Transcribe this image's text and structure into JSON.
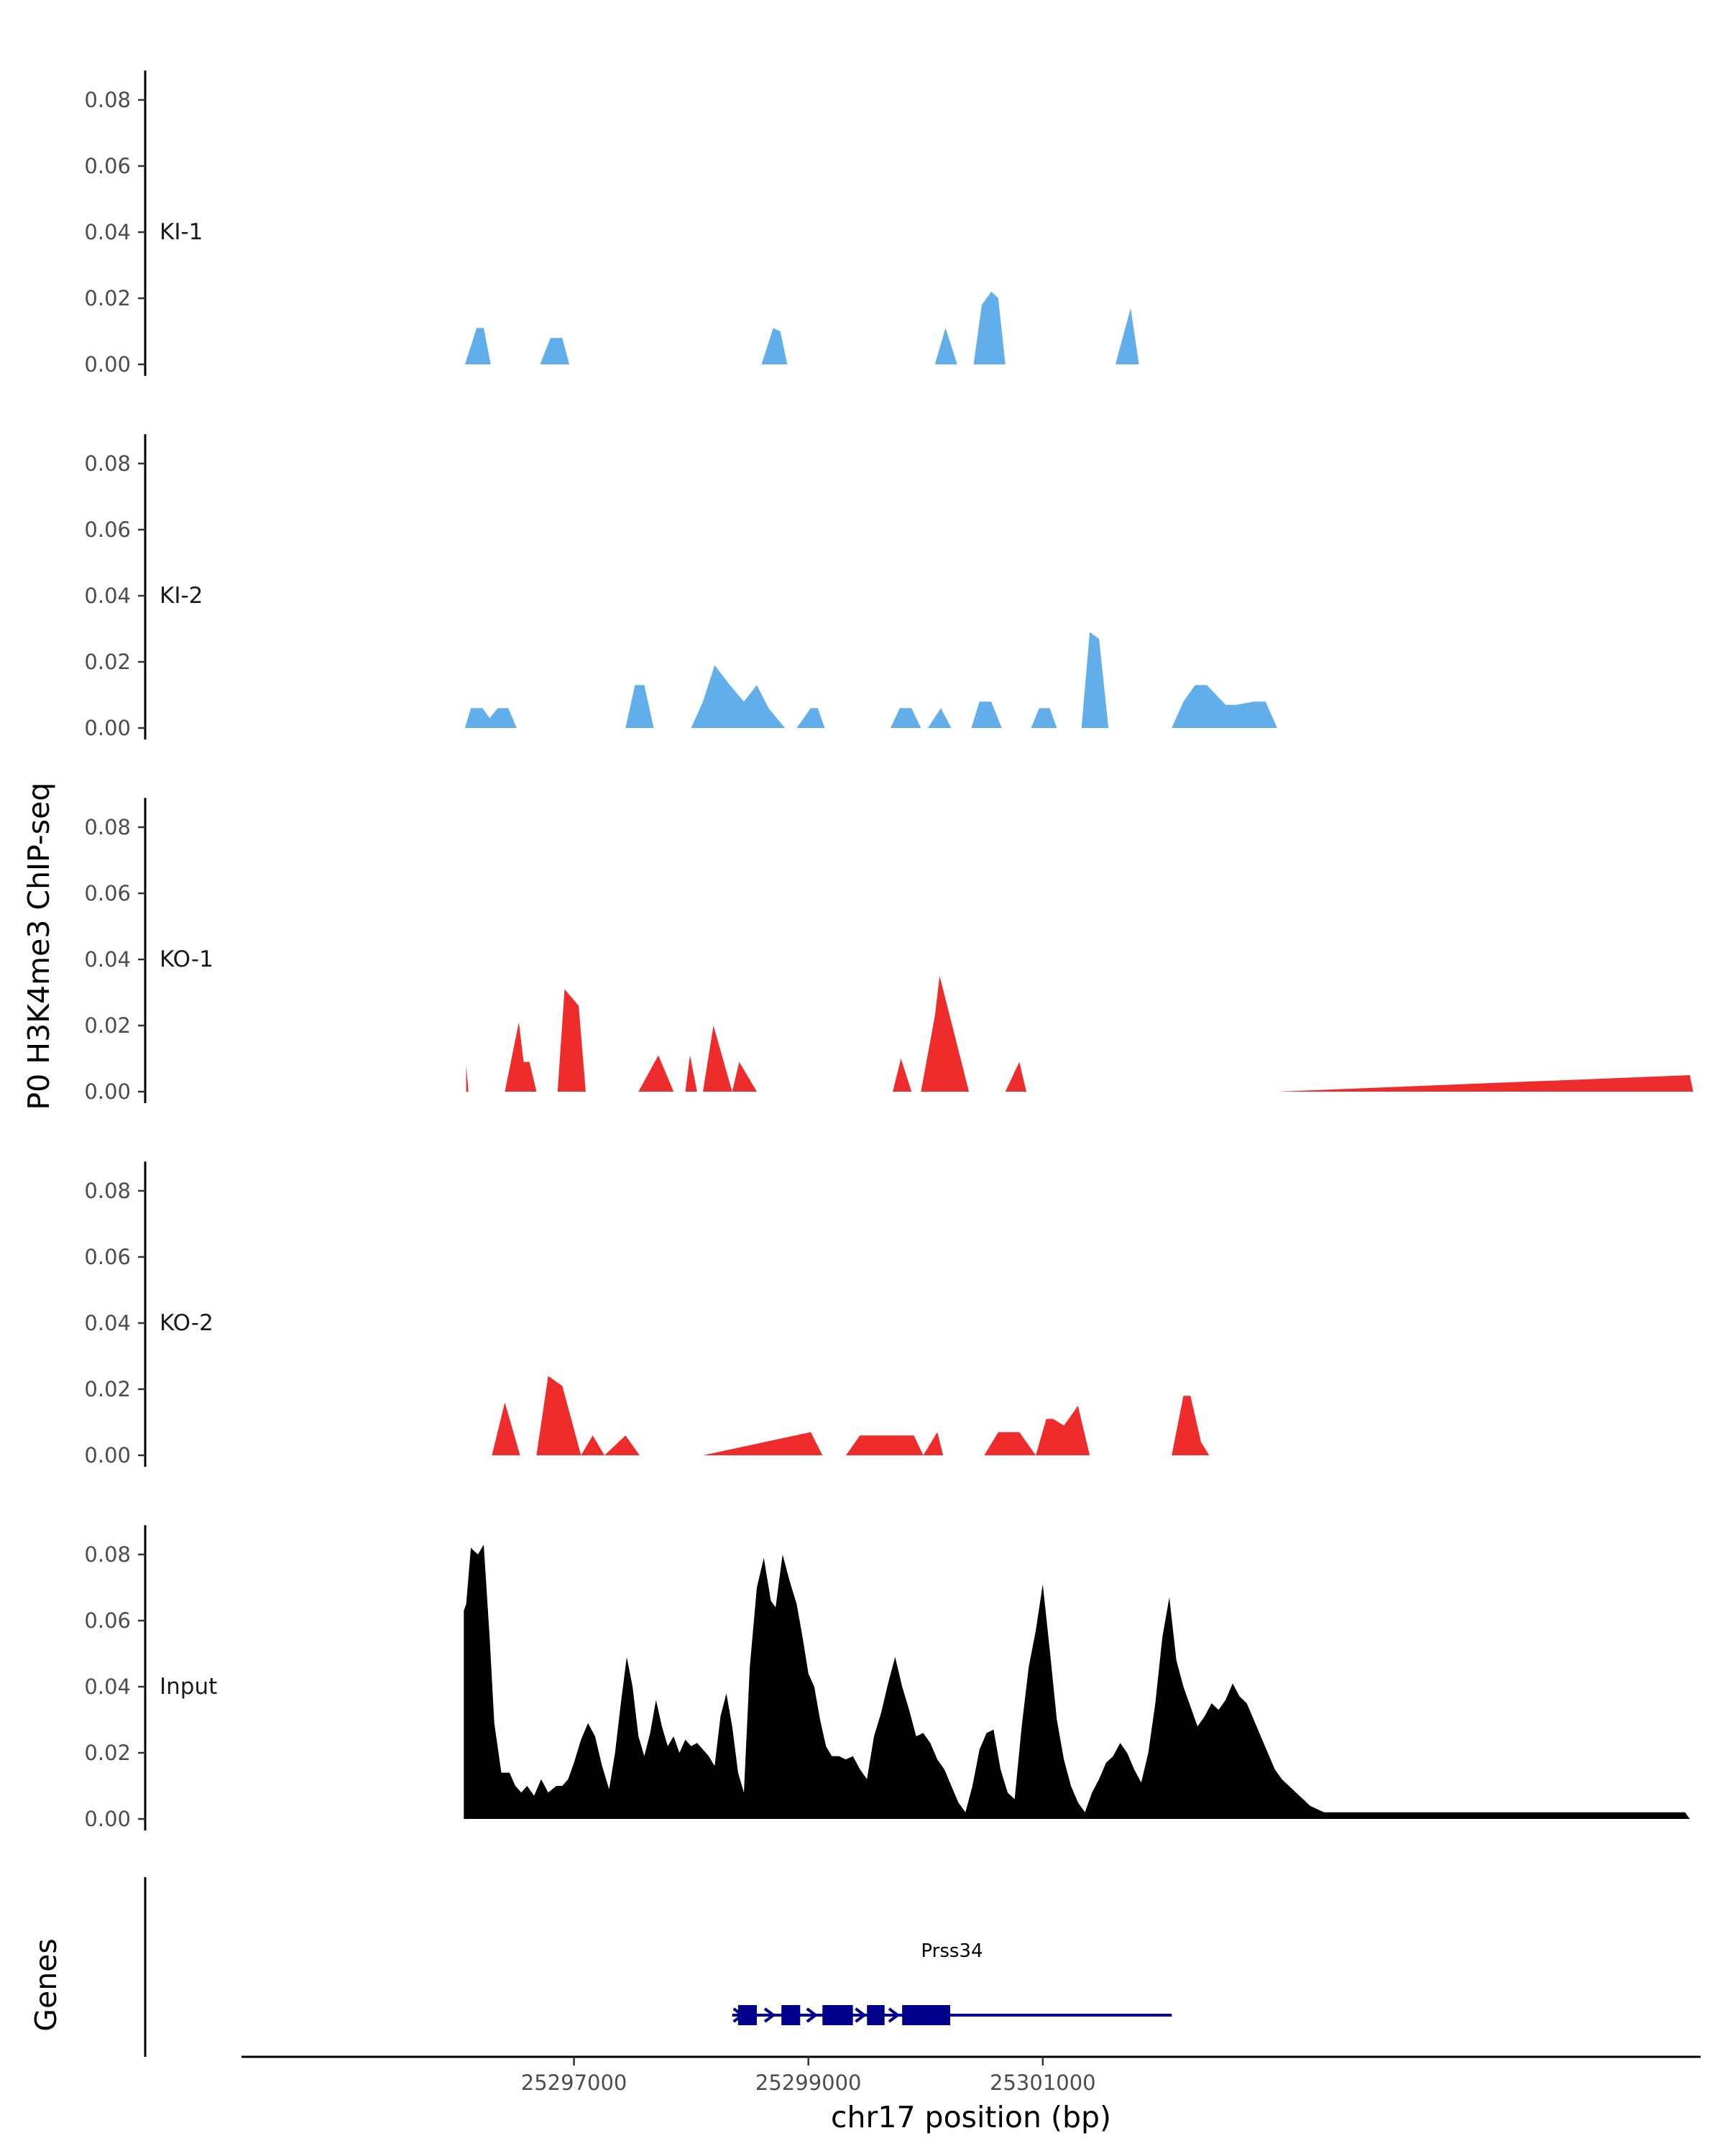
{
  "chart_data": {
    "type": "area",
    "ylabel": "P0 H3K4me3 ChIP-seq",
    "xlabel": "chr17 position (bp)",
    "genes_label": "Genes",
    "xlim": [
      25294200,
      25306600
    ],
    "ylim": [
      0,
      0.088
    ],
    "y_ticks": [
      "0.00",
      "0.02",
      "0.04",
      "0.06",
      "0.08"
    ],
    "x_ticks": [
      {
        "value": 25297000,
        "label": "25297000"
      },
      {
        "value": 25299000,
        "label": "25299000"
      },
      {
        "value": 25301000,
        "label": "25301000"
      }
    ],
    "colors": {
      "KI": "#62aeea",
      "KO": "#ee2c2c",
      "Input": "#000000",
      "gene": "#00008b",
      "axis": "#000000"
    },
    "tracks": [
      {
        "name": "KI-1",
        "color": "#62aeea",
        "x": [
          25296070,
          25296170,
          25296230,
          25296290,
          25296370,
          25296710,
          25296800,
          25296900,
          25296960,
          25298600,
          25298700,
          25298760,
          25298820,
          25298900,
          25300080,
          25300170,
          25300270,
          25300340,
          25300410,
          25300480,
          25300560,
          25300620,
          25300680,
          25300760,
          25300800,
          25301620,
          25301750,
          25301820,
          25301900,
          25301980,
          25302000
        ],
        "y": [
          0.0,
          0.011,
          0.011,
          0.0,
          0.0,
          0.0,
          0.008,
          0.008,
          0.0,
          0.0,
          0.011,
          0.01,
          0.0,
          0.0,
          0.0,
          0.011,
          0.0,
          0.0,
          0.0,
          0.018,
          0.022,
          0.02,
          0.0,
          0.0,
          0.0,
          0.0,
          0.017,
          0.0,
          0.0,
          0.0,
          0.0
        ]
      },
      {
        "name": "KI-2",
        "color": "#62aeea",
        "x": [
          25296070,
          25296120,
          25296220,
          25296280,
          25296350,
          25296440,
          25296510,
          25296580,
          25296700,
          25296800,
          25297440,
          25297520,
          25297600,
          25297680,
          25298000,
          25298100,
          25298200,
          25298330,
          25298450,
          25298560,
          25298660,
          25298800,
          25298900,
          25299020,
          25299080,
          25299140,
          25299200,
          25299320,
          25299700,
          25299780,
          25299880,
          25299960,
          25300020,
          25300130,
          25300220,
          25300300,
          25300390,
          25300460,
          25300560,
          25300650,
          25300900,
          25300970,
          25301060,
          25301120,
          25301330,
          25301400,
          25301480,
          25301560,
          25301600,
          25301650,
          25301730,
          25301870,
          25302000,
          25302100,
          25302200,
          25302300,
          25302400,
          25302560,
          25302650,
          25302800,
          25302900,
          25303000,
          25303100,
          25303200
        ],
        "y": [
          0.0,
          0.006,
          0.006,
          0.003,
          0.006,
          0.006,
          0.0,
          0.0,
          0.0,
          0.0,
          0.0,
          0.013,
          0.013,
          0.0,
          0.0,
          0.008,
          0.019,
          0.013,
          0.008,
          0.013,
          0.006,
          0.0,
          0.0,
          0.006,
          0.006,
          0.0,
          0.0,
          0.0,
          0.0,
          0.006,
          0.006,
          0.0,
          0.0,
          0.006,
          0.0,
          0.0,
          0.0,
          0.008,
          0.008,
          0.0,
          0.0,
          0.006,
          0.006,
          0.0,
          0.0,
          0.029,
          0.027,
          0.0,
          0.0,
          0.0,
          0.0,
          0.0,
          0.0,
          0.0,
          0.008,
          0.013,
          0.013,
          0.007,
          0.007,
          0.008,
          0.008,
          0.0,
          0.0,
          0.0
        ]
      },
      {
        "name": "KO-1",
        "color": "#ee2c2c",
        "x": [
          25296080,
          25296100,
          25296180,
          25296280,
          25296410,
          25296530,
          25296570,
          25296620,
          25296680,
          25296790,
          25296860,
          25296920,
          25297040,
          25297100,
          25297260,
          25297420,
          25297550,
          25297720,
          25297850,
          25297950,
          25297990,
          25298050,
          25298100,
          25298190,
          25298350,
          25298410,
          25298560,
          25298620,
          25298750,
          25298900,
          25299120,
          25299280,
          25299420,
          25299540,
          25299720,
          25299790,
          25299880,
          25299960,
          25300080,
          25300120,
          25300170,
          25300370,
          25300420,
          25300510,
          25300590,
          25300680,
          25300800,
          25300860,
          25300950,
          25301060,
          25302000,
          25303000,
          25306520,
          25306550
        ],
        "y": [
          0.008,
          0.0,
          0.0,
          0.0,
          0.0,
          0.021,
          0.009,
          0.009,
          0.0,
          0.0,
          0.0,
          0.031,
          0.026,
          0.0,
          0.0,
          0.0,
          0.0,
          0.011,
          0.0,
          0.0,
          0.011,
          0.0,
          0.0,
          0.02,
          0.0,
          0.009,
          0.0,
          0.0,
          0.0,
          0.0,
          0.0,
          0.0,
          0.0,
          0.0,
          0.0,
          0.01,
          0.0,
          0.0,
          0.023,
          0.035,
          0.028,
          0.0,
          0.0,
          0.0,
          0.0,
          0.0,
          0.009,
          0.0,
          0.0,
          0.0,
          0.0,
          0.0,
          0.005,
          0.0
        ]
      },
      {
        "name": "KO-2",
        "color": "#ee2c2c",
        "x": [
          25296080,
          25296120,
          25296300,
          25296410,
          25296540,
          25296680,
          25296780,
          25296900,
          25297060,
          25297160,
          25297260,
          25297440,
          25297560,
          25297680,
          25298100,
          25299020,
          25299120,
          25299320,
          25299440,
          25299740,
          25299900,
          25299980,
          25300100,
          25300150,
          25300200,
          25300340,
          25300500,
          25300620,
          25300800,
          25300940,
          25301030,
          25301090,
          25301180,
          25301300,
          25301400,
          25301550,
          25302100,
          25302200,
          25302260,
          25302350,
          25302420
        ],
        "y": [
          0.0,
          0.0,
          0.0,
          0.016,
          0.0,
          0.0,
          0.024,
          0.021,
          0.0,
          0.006,
          0.0,
          0.006,
          0.0,
          0.0,
          0.0,
          0.007,
          0.0,
          0.0,
          0.006,
          0.006,
          0.006,
          0.0,
          0.007,
          0.0,
          0.0,
          0.0,
          0.0,
          0.007,
          0.007,
          0.0,
          0.011,
          0.011,
          0.009,
          0.015,
          0.0,
          0.0,
          0.0,
          0.018,
          0.018,
          0.004,
          0.0
        ]
      },
      {
        "name": "Input",
        "color": "#000000",
        "x": [
          25296060,
          25296080,
          25296120,
          25296180,
          25296230,
          25296280,
          25296320,
          25296380,
          25296450,
          25296500,
          25296550,
          25296600,
          25296660,
          25296720,
          25296780,
          25296850,
          25296900,
          25296950,
          25297000,
          25297060,
          25297120,
          25297180,
          25297240,
          25297300,
          25297350,
          25297400,
          25297450,
          25297500,
          25297550,
          25297600,
          25297650,
          25297700,
          25297750,
          25297800,
          25297850,
          25297900,
          25297950,
          25298000,
          25298050,
          25298100,
          25298150,
          25298200,
          25298250,
          25298300,
          25298350,
          25298400,
          25298450,
          25298500,
          25298560,
          25298620,
          25298680,
          25298720,
          25298780,
          25298840,
          25298900,
          25298950,
          25299000,
          25299050,
          25299100,
          25299150,
          25299200,
          25299260,
          25299320,
          25299380,
          25299440,
          25299500,
          25299560,
          25299620,
          25299680,
          25299740,
          25299800,
          25299860,
          25299920,
          25299980,
          25300040,
          25300100,
          25300160,
          25300220,
          25300280,
          25300340,
          25300400,
          25300460,
          25300520,
          25300580,
          25300640,
          25300700,
          25300760,
          25300820,
          25300880,
          25300940,
          25301000,
          25301060,
          25301120,
          25301180,
          25301240,
          25301300,
          25301360,
          25301420,
          25301480,
          25301540,
          25301600,
          25301660,
          25301720,
          25301780,
          25301840,
          25301900,
          25301960,
          25302020,
          25302080,
          25302140,
          25302200,
          25302260,
          25302320,
          25302380,
          25302440,
          25302500,
          25302560,
          25302620,
          25302680,
          25302740,
          25302800,
          25302860,
          25302920,
          25302980,
          25303040,
          25303100,
          25303160,
          25303220,
          25303280,
          25303340,
          25303400,
          25303460,
          25303520,
          25303580,
          25303640,
          25303700,
          25303760,
          25303820,
          25303880,
          25303940,
          25303990,
          25306480,
          25306520
        ],
        "y": [
          0.063,
          0.065,
          0.082,
          0.08,
          0.083,
          0.055,
          0.029,
          0.014,
          0.014,
          0.01,
          0.008,
          0.01,
          0.007,
          0.012,
          0.008,
          0.01,
          0.01,
          0.012,
          0.017,
          0.024,
          0.029,
          0.025,
          0.016,
          0.009,
          0.02,
          0.035,
          0.049,
          0.04,
          0.025,
          0.019,
          0.026,
          0.036,
          0.028,
          0.022,
          0.025,
          0.02,
          0.024,
          0.022,
          0.023,
          0.021,
          0.019,
          0.016,
          0.031,
          0.038,
          0.028,
          0.014,
          0.008,
          0.046,
          0.07,
          0.079,
          0.066,
          0.064,
          0.08,
          0.072,
          0.065,
          0.055,
          0.044,
          0.04,
          0.03,
          0.022,
          0.019,
          0.019,
          0.018,
          0.019,
          0.015,
          0.012,
          0.025,
          0.032,
          0.041,
          0.049,
          0.04,
          0.033,
          0.025,
          0.026,
          0.023,
          0.018,
          0.015,
          0.01,
          0.005,
          0.002,
          0.01,
          0.021,
          0.026,
          0.027,
          0.015,
          0.008,
          0.006,
          0.028,
          0.046,
          0.057,
          0.071,
          0.051,
          0.03,
          0.018,
          0.01,
          0.005,
          0.002,
          0.008,
          0.012,
          0.017,
          0.019,
          0.023,
          0.02,
          0.015,
          0.011,
          0.02,
          0.035,
          0.055,
          0.067,
          0.048,
          0.04,
          0.034,
          0.028,
          0.031,
          0.035,
          0.033,
          0.036,
          0.041,
          0.037,
          0.035,
          0.03,
          0.025,
          0.02,
          0.015,
          0.012,
          0.01,
          0.008,
          0.006,
          0.004,
          0.003,
          0.002,
          0.002,
          0.002,
          0.002,
          0.002,
          0.002,
          0.002,
          0.002,
          0.002,
          0.002,
          0.002,
          0.002,
          0.0
        ]
      }
    ],
    "gene": {
      "name": "Prss34",
      "start": 25298350,
      "end": 25302100,
      "exons": [
        [
          25298400,
          25298560
        ],
        [
          25298770,
          25298930
        ],
        [
          25299120,
          25299380
        ],
        [
          25299500,
          25299650
        ],
        [
          25299800,
          25300210
        ]
      ]
    }
  }
}
